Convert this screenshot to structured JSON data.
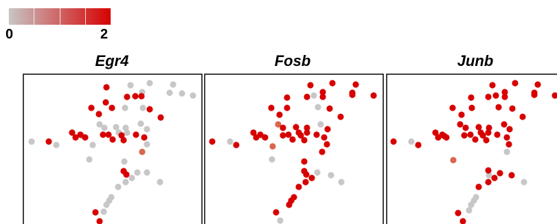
{
  "colors": {
    "low": "#c7c7c7",
    "high": "#d70000",
    "mid": "#d8674d",
    "frame": "#000000"
  },
  "colorbar": {
    "min_label": "0",
    "max_label": "2"
  },
  "chart_data": [
    {
      "type": "scatter",
      "title": "Egr4",
      "points": [
        [
          190,
          124,
          0
        ],
        [
          218,
          121,
          0
        ],
        [
          252,
          123,
          0
        ],
        [
          247,
          135,
          0
        ],
        [
          265,
          136,
          0
        ],
        [
          281,
          139,
          0
        ],
        [
          207,
          134,
          0
        ],
        [
          155,
          127,
          2
        ],
        [
          185,
          141,
          2
        ],
        [
          197,
          140,
          2
        ],
        [
          206,
          140,
          2
        ],
        [
          133,
          157,
          2
        ],
        [
          154,
          149,
          2
        ],
        [
          163,
          157,
          2
        ],
        [
          218,
          159,
          2
        ],
        [
          182,
          157,
          0
        ],
        [
          208,
          157,
          0
        ],
        [
          144,
          166,
          2
        ],
        [
          234,
          171,
          2
        ],
        [
          145,
          181,
          0
        ],
        [
          152,
          186,
          0
        ],
        [
          169,
          185,
          0
        ],
        [
          183,
          186,
          0
        ],
        [
          205,
          180,
          0
        ],
        [
          214,
          188,
          0
        ],
        [
          105,
          193,
          2
        ],
        [
          117,
          196,
          2
        ],
        [
          110,
          200,
          2
        ],
        [
          124,
          200,
          2
        ],
        [
          150,
          196,
          2
        ],
        [
          158,
          196,
          2
        ],
        [
          177,
          197,
          2
        ],
        [
          198,
          196,
          2
        ],
        [
          173,
          193,
          0
        ],
        [
          185,
          193,
          0
        ],
        [
          120,
          198,
          0
        ],
        [
          46,
          206,
          0
        ],
        [
          71,
          206,
          2
        ],
        [
          82,
          211,
          0
        ],
        [
          135,
          211,
          0
        ],
        [
          164,
          203,
          2
        ],
        [
          180,
          204,
          2
        ],
        [
          210,
          200,
          2
        ],
        [
          214,
          210,
          0
        ],
        [
          207,
          221,
          1
        ],
        [
          130,
          232,
          0
        ],
        [
          181,
          235,
          0
        ],
        [
          180,
          249,
          2
        ],
        [
          184,
          254,
          2
        ],
        [
          200,
          251,
          0
        ],
        [
          214,
          251,
          0
        ],
        [
          233,
          265,
          0
        ],
        [
          192,
          259,
          0
        ],
        [
          183,
          265,
          0
        ],
        [
          172,
          272,
          0
        ],
        [
          162,
          287,
          0
        ],
        [
          159,
          292,
          0
        ],
        [
          155,
          298,
          0
        ],
        [
          151,
          308,
          0
        ],
        [
          139,
          309,
          2
        ],
        [
          145,
          322,
          2
        ]
      ]
    },
    {
      "type": "scatter",
      "title": "Fosb",
      "points": [
        [
          452,
          124,
          2
        ],
        [
          484,
          121,
          2
        ],
        [
          518,
          123,
          2
        ],
        [
          513,
          135,
          2
        ],
        [
          544,
          139,
          2
        ],
        [
          470,
          134,
          2
        ],
        [
          513,
          138,
          2
        ],
        [
          457,
          139,
          0
        ],
        [
          463,
          156,
          0
        ],
        [
          418,
          142,
          2
        ],
        [
          447,
          141,
          2
        ],
        [
          470,
          141,
          2
        ],
        [
          395,
          157,
          2
        ],
        [
          418,
          157,
          2
        ],
        [
          480,
          158,
          2
        ],
        [
          407,
          167,
          2
        ],
        [
          496,
          170,
          2
        ],
        [
          405,
          181,
          1
        ],
        [
          412,
          186,
          2
        ],
        [
          431,
          185,
          2
        ],
        [
          447,
          186,
          2
        ],
        [
          467,
          181,
          0
        ],
        [
          477,
          188,
          2
        ],
        [
          369,
          193,
          2
        ],
        [
          379,
          196,
          2
        ],
        [
          373,
          200,
          2
        ],
        [
          386,
          200,
          2
        ],
        [
          412,
          197,
          2
        ],
        [
          420,
          196,
          2
        ],
        [
          438,
          197,
          2
        ],
        [
          461,
          196,
          2
        ],
        [
          435,
          193,
          2
        ],
        [
          447,
          193,
          2
        ],
        [
          382,
          198,
          0
        ],
        [
          309,
          206,
          2
        ],
        [
          335,
          206,
          0
        ],
        [
          344,
          211,
          2
        ],
        [
          397,
          213,
          1
        ],
        [
          426,
          203,
          2
        ],
        [
          443,
          204,
          2
        ],
        [
          472,
          200,
          2
        ],
        [
          476,
          210,
          2
        ],
        [
          469,
          221,
          2
        ],
        [
          396,
          232,
          0
        ],
        [
          443,
          235,
          2
        ],
        [
          443,
          249,
          2
        ],
        [
          446,
          254,
          2
        ],
        [
          462,
          251,
          0
        ],
        [
          482,
          255,
          0
        ],
        [
          497,
          265,
          0
        ],
        [
          454,
          259,
          2
        ],
        [
          445,
          265,
          2
        ],
        [
          435,
          272,
          2
        ],
        [
          428,
          287,
          2
        ],
        [
          424,
          292,
          2
        ],
        [
          421,
          298,
          2
        ],
        [
          402,
          309,
          2
        ],
        [
          408,
          321,
          0
        ]
      ]
    },
    {
      "type": "scatter",
      "title": "Junb",
      "points": [
        [
          717,
          124,
          2
        ],
        [
          750,
          121,
          2
        ],
        [
          783,
          123,
          2
        ],
        [
          778,
          135,
          2
        ],
        [
          808,
          139,
          2
        ],
        [
          735,
          134,
          2
        ],
        [
          778,
          138,
          2
        ],
        [
          722,
          139,
          2
        ],
        [
          726,
          156,
          2
        ],
        [
          686,
          142,
          2
        ],
        [
          711,
          141,
          2
        ],
        [
          735,
          141,
          2
        ],
        [
          659,
          157,
          2
        ],
        [
          687,
          157,
          2
        ],
        [
          746,
          158,
          2
        ],
        [
          672,
          167,
          2
        ],
        [
          761,
          170,
          2
        ],
        [
          670,
          181,
          2
        ],
        [
          678,
          186,
          2
        ],
        [
          697,
          185,
          2
        ],
        [
          712,
          186,
          2
        ],
        [
          734,
          181,
          2
        ],
        [
          742,
          188,
          2
        ],
        [
          634,
          193,
          2
        ],
        [
          644,
          196,
          2
        ],
        [
          638,
          200,
          2
        ],
        [
          650,
          200,
          2
        ],
        [
          676,
          197,
          2
        ],
        [
          685,
          196,
          2
        ],
        [
          703,
          197,
          2
        ],
        [
          724,
          196,
          2
        ],
        [
          700,
          193,
          2
        ],
        [
          711,
          193,
          2
        ],
        [
          647,
          198,
          2
        ],
        [
          573,
          206,
          2
        ],
        [
          599,
          206,
          0
        ],
        [
          609,
          211,
          2
        ],
        [
          660,
          233,
          1
        ],
        [
          692,
          203,
          2
        ],
        [
          708,
          204,
          2
        ],
        [
          738,
          200,
          2
        ],
        [
          741,
          210,
          2
        ],
        [
          738,
          221,
          0
        ],
        [
          711,
          248,
          2
        ],
        [
          712,
          255,
          0
        ],
        [
          728,
          252,
          2
        ],
        [
          745,
          255,
          2
        ],
        [
          763,
          265,
          0
        ],
        [
          720,
          259,
          2
        ],
        [
          711,
          265,
          2
        ],
        [
          697,
          272,
          2
        ],
        [
          693,
          287,
          0
        ],
        [
          690,
          292,
          0
        ],
        [
          686,
          298,
          0
        ],
        [
          683,
          306,
          0
        ],
        [
          667,
          310,
          2
        ],
        [
          674,
          322,
          2
        ]
      ]
    }
  ]
}
